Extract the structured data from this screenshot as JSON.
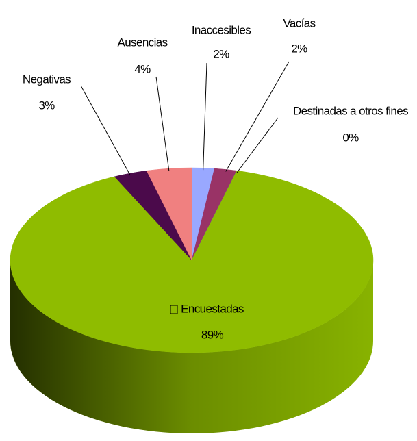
{
  "chart_data": {
    "type": "pie",
    "categories": [
      "Inaccesibles",
      "Vacías",
      "Destinadas a otros fines",
      "Encuestadas",
      "Negativas",
      "Ausencias"
    ],
    "values": [
      2,
      2,
      0,
      89,
      3,
      4
    ],
    "value_labels": [
      "2%",
      "2%",
      "0%",
      "89%",
      "3%",
      "4%"
    ],
    "colors": [
      "#99a8ff",
      "#993366",
      "#3399cc",
      "#8fbc00",
      "#4b0a4b",
      "#f08080"
    ]
  }
}
